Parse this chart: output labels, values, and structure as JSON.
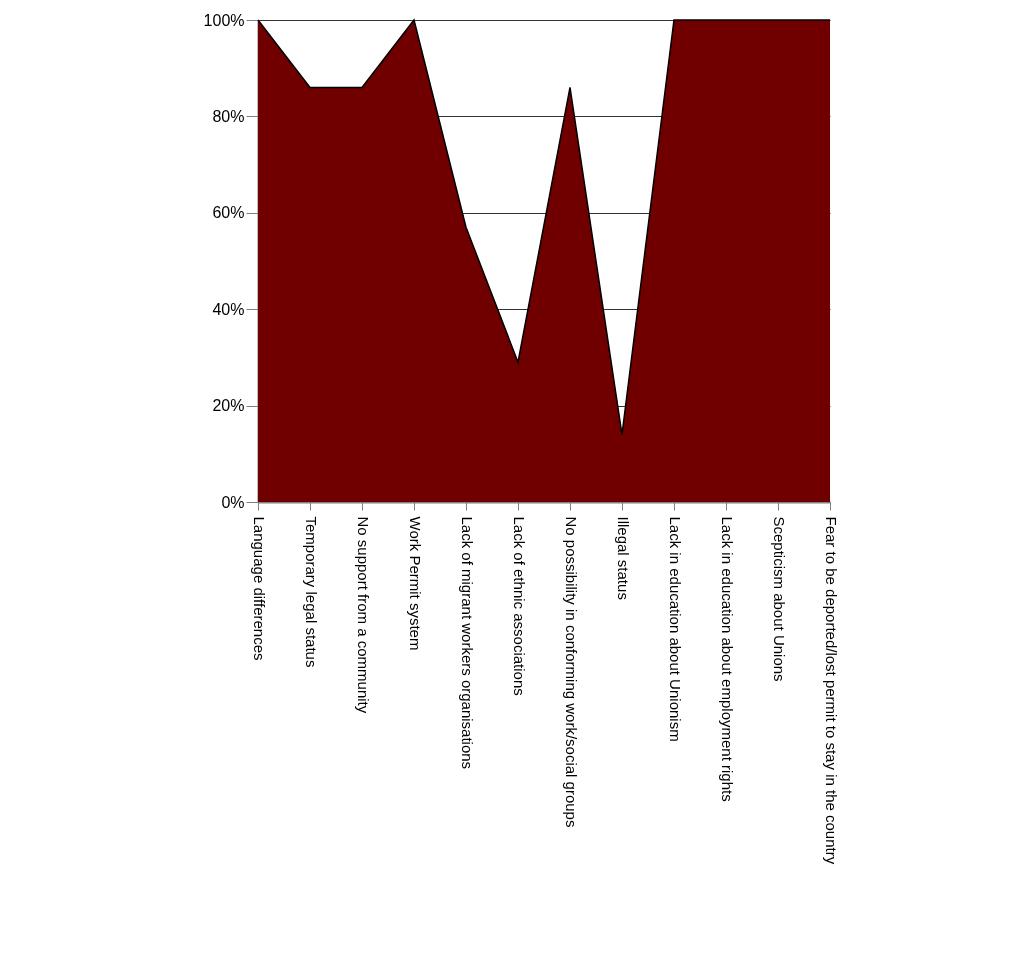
{
  "chart_data": {
    "type": "area",
    "categories": [
      "Language differences",
      "Temporary legal status",
      "No support from a community",
      "Work Permit system",
      "Lack of migrant workers organisations",
      "Lack of ethnic associations",
      "No possibility in conforming work/social groups",
      "Illegal status",
      "Lack in education about Unionism",
      "Lack in education about employment rights",
      "Scepticism about Unions",
      "Fear to be deported/lost permit to stay in the country"
    ],
    "values": [
      100,
      86,
      86,
      100,
      57,
      29,
      86,
      14,
      100,
      100,
      100,
      100
    ],
    "color": "#700000",
    "ylim": [
      0,
      100
    ],
    "yticks": [
      {
        "value": 0,
        "label": "0%"
      },
      {
        "value": 20,
        "label": "20%"
      },
      {
        "value": 40,
        "label": "40%"
      },
      {
        "value": 60,
        "label": "60%"
      },
      {
        "value": 80,
        "label": "80%"
      },
      {
        "value": 100,
        "label": "100%"
      }
    ],
    "grid": "y",
    "legend": false
  }
}
